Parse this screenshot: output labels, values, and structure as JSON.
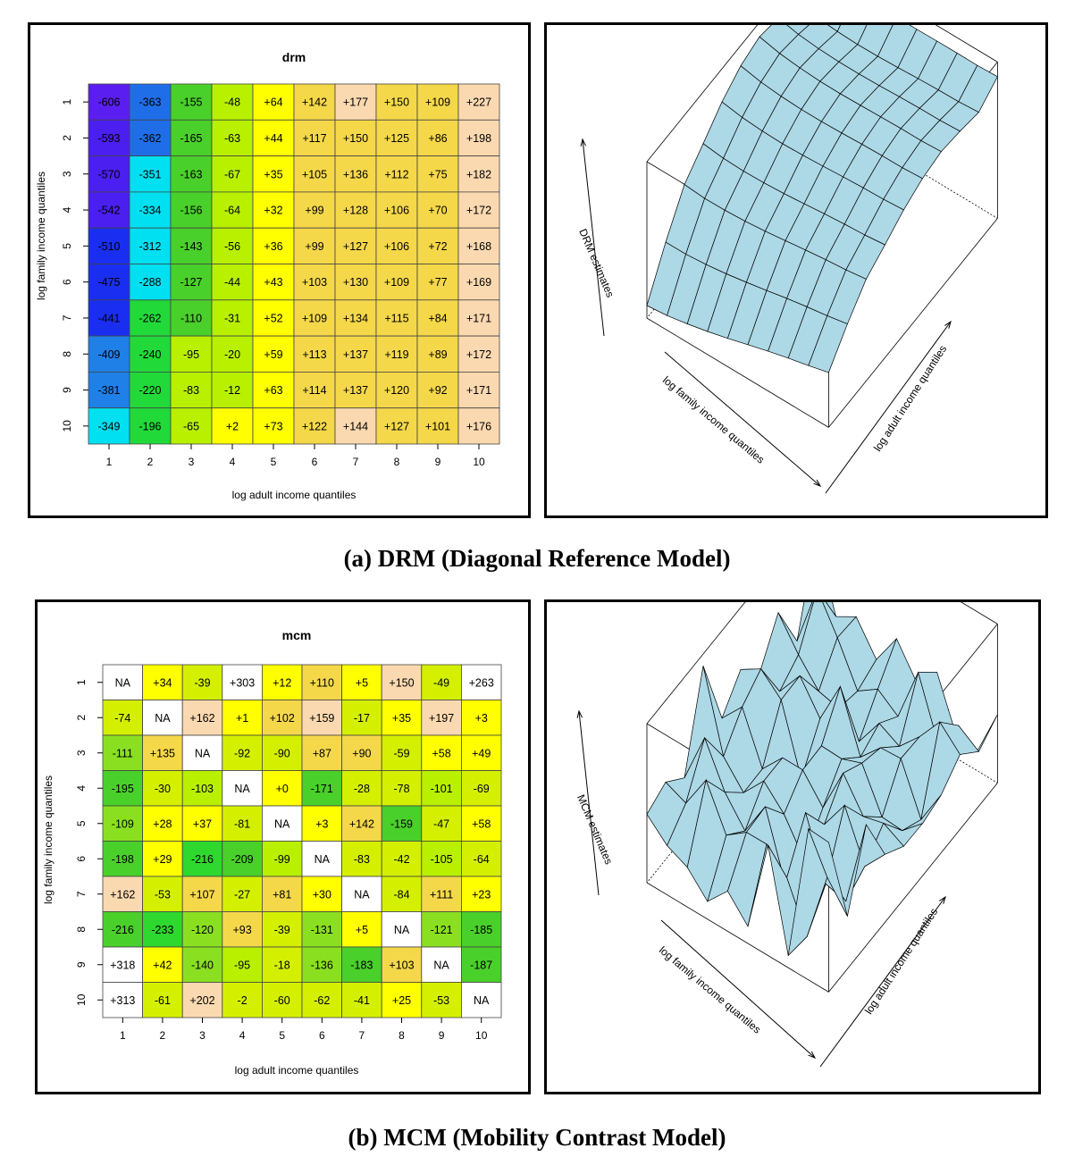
{
  "figure": {
    "caption_a": "(a) DRM (Diagonal Reference Model)",
    "caption_b": "(b) MCM (Mobility Contrast Model)"
  },
  "chart_data": [
    {
      "type": "heatmap",
      "title": "drm",
      "xlabel": "log adult income quantiles",
      "ylabel": "log family income quantiles",
      "x_ticks": [
        "1",
        "2",
        "3",
        "4",
        "5",
        "6",
        "7",
        "8",
        "9",
        "10"
      ],
      "y_ticks": [
        "1",
        "2",
        "3",
        "4",
        "5",
        "6",
        "7",
        "8",
        "9",
        "10"
      ],
      "cell_labels": [
        [
          "-606",
          "-363",
          "-155",
          "-48",
          "+64",
          "+142",
          "+177",
          "+150",
          "+109",
          "+227"
        ],
        [
          "-593",
          "-362",
          "-165",
          "-63",
          "+44",
          "+117",
          "+150",
          "+125",
          "+86",
          "+198"
        ],
        [
          "-570",
          "-351",
          "-163",
          "-67",
          "+35",
          "+105",
          "+136",
          "+112",
          "+75",
          "+182"
        ],
        [
          "-542",
          "-334",
          "-156",
          "-64",
          "+32",
          "+99",
          "+128",
          "+106",
          "+70",
          "+172"
        ],
        [
          "-510",
          "-312",
          "-143",
          "-56",
          "+36",
          "+99",
          "+127",
          "+106",
          "+72",
          "+168"
        ],
        [
          "-475",
          "-288",
          "-127",
          "-44",
          "+43",
          "+103",
          "+130",
          "+109",
          "+77",
          "+169"
        ],
        [
          "-441",
          "-262",
          "-110",
          "-31",
          "+52",
          "+109",
          "+134",
          "+115",
          "+84",
          "+171"
        ],
        [
          "-409",
          "-240",
          "-95",
          "-20",
          "+59",
          "+113",
          "+137",
          "+119",
          "+89",
          "+172"
        ],
        [
          "-381",
          "-220",
          "-83",
          "-12",
          "+63",
          "+114",
          "+137",
          "+120",
          "+92",
          "+171"
        ],
        [
          "-349",
          "-196",
          "-65",
          "+2",
          "+73",
          "+122",
          "+144",
          "+127",
          "+101",
          "+176"
        ]
      ],
      "cell_colors": [
        [
          "#5a1ff0",
          "#1f6ee8",
          "#4ad02a",
          "#b8f000",
          "#ffff00",
          "#f5d84a",
          "#fbd9b0",
          "#f5d84a",
          "#f5d84a",
          "#fbd9b0"
        ],
        [
          "#4a1ff0",
          "#1f6ee8",
          "#4ad02a",
          "#b8f000",
          "#ffff00",
          "#f5d84a",
          "#f5d84a",
          "#f5d84a",
          "#f5d84a",
          "#fbd9b0"
        ],
        [
          "#4a1ff0",
          "#00e0f0",
          "#4ad02a",
          "#b8f000",
          "#ffff00",
          "#f5d84a",
          "#f5d84a",
          "#f5d84a",
          "#f5d84a",
          "#fbd9b0"
        ],
        [
          "#4a1ff0",
          "#00e0f0",
          "#4ad02a",
          "#b8f000",
          "#ffff00",
          "#f5d84a",
          "#f5d84a",
          "#f5d84a",
          "#f5d84a",
          "#fbd9b0"
        ],
        [
          "#1a2ef0",
          "#00e0f0",
          "#4ad02a",
          "#b8f000",
          "#ffff00",
          "#f5d84a",
          "#f5d84a",
          "#f5d84a",
          "#f5d84a",
          "#fbd9b0"
        ],
        [
          "#1a2ef0",
          "#00e0f0",
          "#4ad02a",
          "#b8f000",
          "#ffff00",
          "#f5d84a",
          "#f5d84a",
          "#f5d84a",
          "#f5d84a",
          "#fbd9b0"
        ],
        [
          "#1a2ef0",
          "#22d93a",
          "#4ad02a",
          "#b8f000",
          "#ffff00",
          "#f5d84a",
          "#f5d84a",
          "#f5d84a",
          "#f5d84a",
          "#fbd9b0"
        ],
        [
          "#1f80e8",
          "#22d93a",
          "#b8f000",
          "#b8f000",
          "#ffff00",
          "#f5d84a",
          "#f5d84a",
          "#f5d84a",
          "#f5d84a",
          "#fbd9b0"
        ],
        [
          "#1f80e8",
          "#22d93a",
          "#b8f000",
          "#b8f000",
          "#ffff00",
          "#f5d84a",
          "#f5d84a",
          "#f5d84a",
          "#f5d84a",
          "#fbd9b0"
        ],
        [
          "#00e0f0",
          "#22d93a",
          "#b8f000",
          "#ffff00",
          "#ffff00",
          "#f5d84a",
          "#fbd9b0",
          "#f5d84a",
          "#f5d84a",
          "#fbd9b0"
        ]
      ]
    },
    {
      "type": "heatmap",
      "title": "mcm",
      "xlabel": "log adult income quantiles",
      "ylabel": "log family income quantiles",
      "x_ticks": [
        "1",
        "2",
        "3",
        "4",
        "5",
        "6",
        "7",
        "8",
        "9",
        "10"
      ],
      "y_ticks": [
        "1",
        "2",
        "3",
        "4",
        "5",
        "6",
        "7",
        "8",
        "9",
        "10"
      ],
      "cell_labels": [
        [
          "NA",
          "+34",
          "-39",
          "+303",
          "+12",
          "+110",
          "+5",
          "+150",
          "-49",
          "+263"
        ],
        [
          "-74",
          "NA",
          "+162",
          "+1",
          "+102",
          "+159",
          "-17",
          "+35",
          "+197",
          "+3"
        ],
        [
          "-111",
          "+135",
          "NA",
          "-92",
          "-90",
          "+87",
          "+90",
          "-59",
          "+58",
          "+49"
        ],
        [
          "-195",
          "-30",
          "-103",
          "NA",
          "+0",
          "-171",
          "-28",
          "-78",
          "-101",
          "-69"
        ],
        [
          "-109",
          "+28",
          "+37",
          "-81",
          "NA",
          "+3",
          "+142",
          "-159",
          "-47",
          "+58"
        ],
        [
          "-198",
          "+29",
          "-216",
          "-209",
          "-99",
          "NA",
          "-83",
          "-42",
          "-105",
          "-64"
        ],
        [
          "+162",
          "-53",
          "+107",
          "-27",
          "+81",
          "+30",
          "NA",
          "-84",
          "+111",
          "+23"
        ],
        [
          "-216",
          "-233",
          "-120",
          "+93",
          "-39",
          "-131",
          "+5",
          "NA",
          "-121",
          "-185"
        ],
        [
          "+318",
          "+42",
          "-140",
          "-95",
          "-18",
          "-136",
          "-183",
          "+103",
          "NA",
          "-187"
        ],
        [
          "+313",
          "-61",
          "+202",
          "-2",
          "-60",
          "-62",
          "-41",
          "+25",
          "-53",
          "NA"
        ]
      ],
      "cell_colors": [
        [
          "#ffffff",
          "#ffff00",
          "#d4f000",
          "#ffffff",
          "#ffff00",
          "#f5d84a",
          "#ffff00",
          "#fbd9b0",
          "#d4f000",
          "#ffffff"
        ],
        [
          "#d4f000",
          "#ffffff",
          "#fbd9b0",
          "#ffff00",
          "#f5d84a",
          "#fbd9b0",
          "#d4f000",
          "#ffff00",
          "#fbd9b0",
          "#ffff00"
        ],
        [
          "#8ae020",
          "#f5d84a",
          "#ffffff",
          "#d4f000",
          "#d4f000",
          "#f5d84a",
          "#f5d84a",
          "#d4f000",
          "#ffff00",
          "#ffff00"
        ],
        [
          "#4ad02a",
          "#d4f000",
          "#b8f000",
          "#ffffff",
          "#ffff00",
          "#4ad02a",
          "#d4f000",
          "#d4f000",
          "#b8f000",
          "#d4f000"
        ],
        [
          "#8ae020",
          "#ffff00",
          "#ffff00",
          "#d4f000",
          "#ffffff",
          "#ffff00",
          "#f5d84a",
          "#4ad02a",
          "#d4f000",
          "#ffff00"
        ],
        [
          "#4ad02a",
          "#ffff00",
          "#2ed82e",
          "#4ad02a",
          "#b8f000",
          "#ffffff",
          "#d4f000",
          "#d4f000",
          "#b8f000",
          "#d4f000"
        ],
        [
          "#fbd9b0",
          "#d4f000",
          "#f5d84a",
          "#d4f000",
          "#f5d84a",
          "#ffff00",
          "#ffffff",
          "#d4f000",
          "#f5d84a",
          "#ffff00"
        ],
        [
          "#4ad02a",
          "#2ed82e",
          "#8ae020",
          "#f5d84a",
          "#d4f000",
          "#8ae020",
          "#ffff00",
          "#ffffff",
          "#8ae020",
          "#4ad02a"
        ],
        [
          "#ffffff",
          "#ffff00",
          "#8ae020",
          "#b8f000",
          "#d4f000",
          "#8ae020",
          "#4ad02a",
          "#f5d84a",
          "#ffffff",
          "#4ad02a"
        ],
        [
          "#ffffff",
          "#d4f000",
          "#fbd9b0",
          "#d4f000",
          "#d4f000",
          "#d4f000",
          "#d4f000",
          "#ffff00",
          "#d4f000",
          "#ffffff"
        ]
      ]
    }
  ],
  "surfaces": {
    "drm": {
      "zlabel": "DRM estimates",
      "xlabel": "log family income quantiles",
      "ylabel": "log adult income quantiles",
      "fill": "#add8e6"
    },
    "mcm": {
      "zlabel": "MCM estimates",
      "xlabel": "log family income quantiles",
      "ylabel": "log adult income quantiles",
      "fill": "#add8e6"
    }
  }
}
